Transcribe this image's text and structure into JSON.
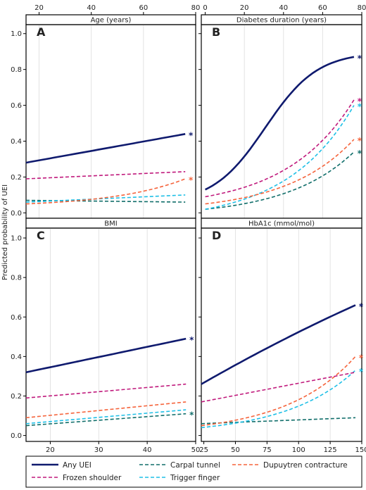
{
  "figure": {
    "ylabel": "Predicted probability of UEI"
  },
  "legend": [
    {
      "id": "any",
      "label": "Any UEI",
      "color": "#0f1a6e",
      "dash": "",
      "width": 2.6
    },
    {
      "id": "carpal",
      "label": "Carpal tunnel",
      "color": "#106e6a",
      "dash": "5,3",
      "width": 1.6
    },
    {
      "id": "dupuytren",
      "label": "Dupuytren contracture",
      "color": "#f5643c",
      "dash": "5,3",
      "width": 1.6
    },
    {
      "id": "frozen",
      "label": "Frozen shoulder",
      "color": "#c0197c",
      "dash": "5,3",
      "width": 1.6
    },
    {
      "id": "trigger",
      "label": "Trigger finger",
      "color": "#1ebfe6",
      "dash": "5,3",
      "width": 1.6
    }
  ],
  "chart_data": [
    {
      "type": "line",
      "panel": "A",
      "title": "Age (years)",
      "xlim": [
        15,
        80
      ],
      "ylim": [
        -0.03,
        1.05
      ],
      "xticks": [
        20,
        40,
        60,
        80
      ],
      "xticks_position": "top",
      "yticks": [
        0.0,
        0.2,
        0.4,
        0.6,
        0.8,
        1.0
      ],
      "yticks_show": true,
      "grid_x": [
        20,
        40,
        60
      ],
      "x": [
        15,
        76
      ],
      "series": [
        {
          "id": "any",
          "values": [
            0.28,
            0.44
          ],
          "star": true
        },
        {
          "id": "frozen",
          "values": [
            0.19,
            0.23
          ],
          "star": false
        },
        {
          "id": "dupuytren",
          "values": [
            0.05,
            0.19
          ],
          "star": true
        },
        {
          "id": "carpal",
          "values": [
            0.07,
            0.06
          ],
          "star": false
        },
        {
          "id": "trigger",
          "values": [
            0.06,
            0.1
          ],
          "star": false
        }
      ]
    },
    {
      "type": "line",
      "panel": "B",
      "title": "Diabetes duration (years)",
      "xlim": [
        -2,
        80
      ],
      "ylim": [
        -0.03,
        1.05
      ],
      "xticks": [
        0,
        20,
        40,
        60,
        80
      ],
      "xticks_position": "top",
      "yticks": [
        0.0,
        0.2,
        0.4,
        0.6,
        0.8,
        1.0
      ],
      "yticks_show": false,
      "grid_x": [
        20,
        40,
        60
      ],
      "x": [
        0,
        76
      ],
      "series": [
        {
          "id": "any",
          "values": [
            0.13,
            0.87
          ],
          "star": true
        },
        {
          "id": "frozen",
          "values": [
            0.09,
            0.63
          ],
          "star": true
        },
        {
          "id": "trigger",
          "values": [
            0.02,
            0.6
          ],
          "star": true
        },
        {
          "id": "dupuytren",
          "values": [
            0.05,
            0.41
          ],
          "star": true
        },
        {
          "id": "carpal",
          "values": [
            0.02,
            0.34
          ],
          "star": true
        }
      ]
    },
    {
      "type": "line",
      "panel": "C",
      "title": "BMI",
      "xlim": [
        15,
        50
      ],
      "ylim": [
        -0.03,
        1.05
      ],
      "xticks": [
        20,
        30,
        40,
        50
      ],
      "xticks_position": "bottom",
      "yticks": [
        0.0,
        0.2,
        0.4,
        0.6,
        0.8,
        1.0
      ],
      "yticks_show": true,
      "grid_x": [
        20,
        30,
        40
      ],
      "x": [
        15,
        48
      ],
      "series": [
        {
          "id": "any",
          "values": [
            0.32,
            0.49
          ],
          "star": true
        },
        {
          "id": "frozen",
          "values": [
            0.19,
            0.26
          ],
          "star": false
        },
        {
          "id": "dupuytren",
          "values": [
            0.09,
            0.17
          ],
          "star": false
        },
        {
          "id": "trigger",
          "values": [
            0.06,
            0.13
          ],
          "star": false
        },
        {
          "id": "carpal",
          "values": [
            0.05,
            0.11
          ],
          "star": true
        }
      ]
    },
    {
      "type": "line",
      "panel": "D",
      "title": "HbA1c (mmol/mol)",
      "xlim": [
        23,
        150
      ],
      "ylim": [
        -0.03,
        1.05
      ],
      "xticks": [
        25,
        50,
        75,
        100,
        125,
        150
      ],
      "xticks_position": "bottom",
      "yticks": [
        0.0,
        0.2,
        0.4,
        0.6,
        0.8,
        1.0
      ],
      "yticks_show": false,
      "grid_x": [
        50,
        75,
        100,
        125
      ],
      "x": [
        23,
        145
      ],
      "series": [
        {
          "id": "any",
          "values": [
            0.26,
            0.66
          ],
          "star": true
        },
        {
          "id": "dupuytren",
          "values": [
            0.05,
            0.4
          ],
          "star": true
        },
        {
          "id": "trigger",
          "values": [
            0.04,
            0.33
          ],
          "star": true
        },
        {
          "id": "frozen",
          "values": [
            0.17,
            0.32
          ],
          "star": false
        },
        {
          "id": "carpal",
          "values": [
            0.06,
            0.09
          ],
          "star": false
        }
      ]
    }
  ]
}
